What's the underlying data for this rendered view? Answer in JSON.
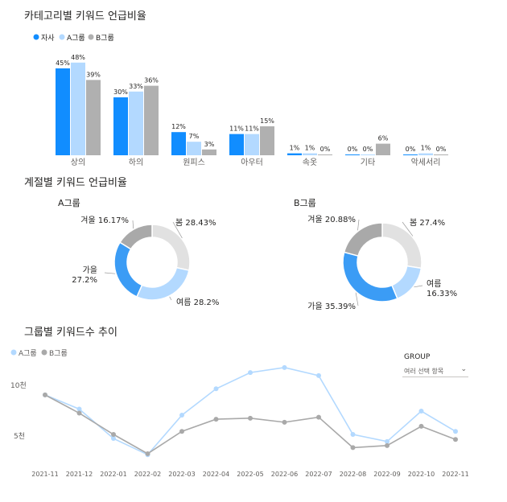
{
  "colors": {
    "jasa": "#118dff",
    "a": "#b3d9ff",
    "b": "#b0b0b0",
    "spring": "#e1e1e1",
    "summer": "#b3d9ff",
    "autumn": "#3b9cf5",
    "winter": "#a9a9a9"
  },
  "chart_data": [
    {
      "type": "bar",
      "title": "카테고리별 키워드 언급비율",
      "categories": [
        "상의",
        "하의",
        "원피스",
        "아우터",
        "속옷",
        "기타",
        "악세서리"
      ],
      "series": [
        {
          "name": "자사",
          "values": [
            45,
            30,
            12,
            11,
            1,
            0,
            0
          ]
        },
        {
          "name": "A그룹",
          "values": [
            48,
            33,
            7,
            11,
            1,
            0,
            1
          ]
        },
        {
          "name": "B그룹",
          "values": [
            39,
            36,
            3,
            15,
            0,
            6,
            0
          ]
        }
      ],
      "value_suffix": "%",
      "ylim": [
        0,
        50
      ],
      "legend": "top-left"
    },
    {
      "type": "pie",
      "title": "계절별 키워드 언급비율",
      "subtitle": "A그룹",
      "labels": [
        "봄",
        "여름",
        "가을",
        "겨울"
      ],
      "values": [
        28.43,
        28.2,
        27.2,
        16.17
      ],
      "value_labels": [
        "28.43%",
        "28.2%",
        "27.2%",
        "16.17%"
      ]
    },
    {
      "type": "pie",
      "subtitle": "B그룹",
      "labels": [
        "봄",
        "여름",
        "가을",
        "겨울"
      ],
      "values": [
        27.4,
        16.33,
        35.39,
        20.88
      ],
      "value_labels": [
        "27.4%",
        "16.33%",
        "35.39%",
        "20.88%"
      ]
    },
    {
      "type": "line",
      "title": "그룹별 키워드수 추이",
      "x": [
        "2021-11",
        "2021-12",
        "2022-01",
        "2022-02",
        "2022-03",
        "2022-04",
        "2022-05",
        "2022-06",
        "2022-07",
        "2022-08",
        "2022-09",
        "2022-10",
        "2022-11"
      ],
      "series": [
        {
          "name": "A그룹",
          "values": [
            8.9,
            7.5,
            4.6,
            3.0,
            6.9,
            9.5,
            11.1,
            11.6,
            10.8,
            5.0,
            4.3,
            7.3,
            5.3
          ]
        },
        {
          "name": "B그룹",
          "values": [
            8.9,
            7.1,
            5.0,
            3.1,
            5.3,
            6.5,
            6.6,
            6.2,
            6.7,
            3.7,
            3.9,
            5.8,
            4.5
          ]
        }
      ],
      "ytick_labels": [
        "10천",
        "5천"
      ],
      "legend": "top-left"
    }
  ],
  "filter": {
    "label": "GROUP",
    "value": "여러 선택 항목"
  }
}
